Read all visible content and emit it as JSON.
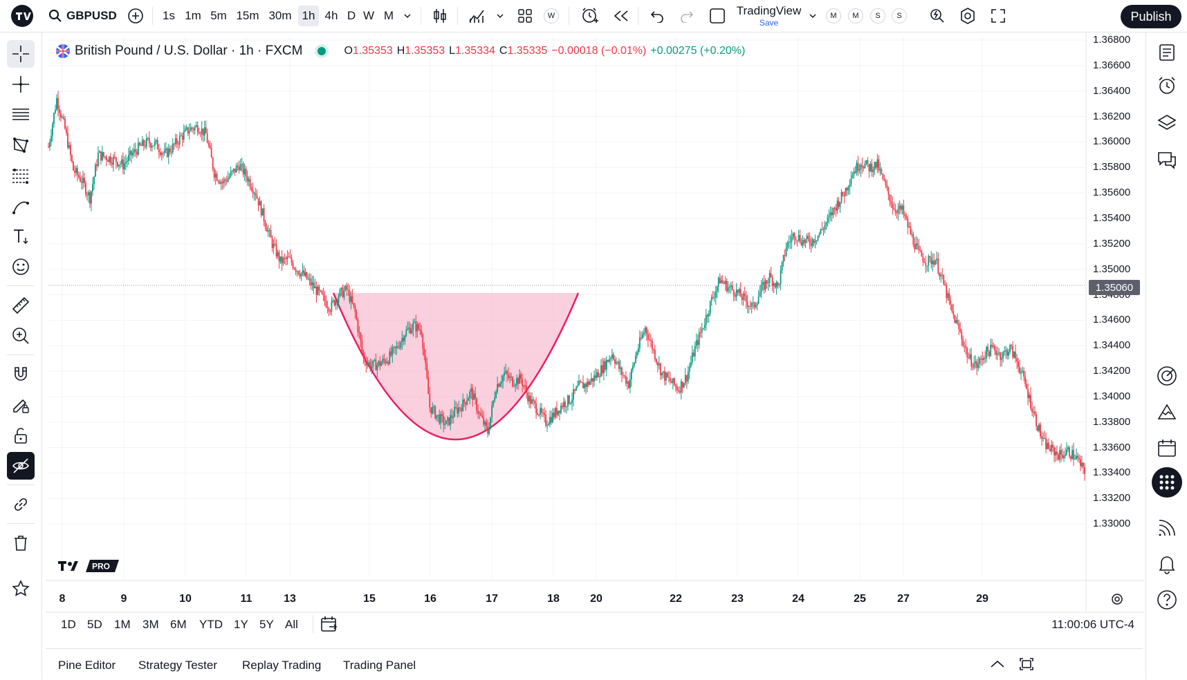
{
  "toolbar": {
    "symbol": "GBPUSD",
    "intervals": [
      "1s",
      "1m",
      "5m",
      "15m",
      "30m",
      "1h",
      "4h",
      "D",
      "W",
      "M"
    ],
    "active_interval": "1h",
    "layout_name": "TradingView",
    "save_label": "Save",
    "status_circles": [
      "W",
      "M",
      "M",
      "S",
      "S"
    ],
    "publish_label": "Publish"
  },
  "legend": {
    "title": "British Pound / U.S. Dollar · 1h · FXCM",
    "o_label": "O",
    "o_value": "1.35353",
    "h_label": "H",
    "h_value": "1.35353",
    "l_label": "L",
    "l_value": "1.35334",
    "c_label": "C",
    "c_value": "1.35335",
    "change": "−0.00018 (−0.01%)",
    "change2": "+0.00275 (+0.20%)"
  },
  "chart_data": {
    "type": "candlestick",
    "y_ticks": [
      "1.36800",
      "1.36600",
      "1.36400",
      "1.36200",
      "1.36000",
      "1.35800",
      "1.35600",
      "1.35400",
      "1.35200",
      "1.35000",
      "1.34800",
      "1.34600",
      "1.34400",
      "1.34200",
      "1.34000",
      "1.33800",
      "1.33600",
      "1.33400",
      "1.33200",
      "1.33000"
    ],
    "ylim": [
      1.3295,
      1.3685
    ],
    "current_price": "1.35060",
    "x_ticks": [
      "8",
      "9",
      "10",
      "11",
      "13",
      "15",
      "16",
      "17",
      "18",
      "20",
      "22",
      "23",
      "24",
      "25",
      "27",
      "29"
    ],
    "path_points": [
      [
        0,
        1.3596
      ],
      [
        6,
        1.3634
      ],
      [
        12,
        1.361
      ],
      [
        18,
        1.3578
      ],
      [
        24,
        1.357
      ],
      [
        30,
        1.3556
      ],
      [
        36,
        1.359
      ],
      [
        42,
        1.3588
      ],
      [
        48,
        1.3586
      ],
      [
        54,
        1.3582
      ],
      [
        60,
        1.359
      ],
      [
        66,
        1.3596
      ],
      [
        72,
        1.36
      ],
      [
        78,
        1.3598
      ],
      [
        84,
        1.359
      ],
      [
        90,
        1.3596
      ],
      [
        96,
        1.3604
      ],
      [
        102,
        1.361
      ],
      [
        108,
        1.3612
      ],
      [
        114,
        1.3606
      ],
      [
        120,
        1.3576
      ],
      [
        126,
        1.3568
      ],
      [
        132,
        1.3574
      ],
      [
        138,
        1.3582
      ],
      [
        144,
        1.3572
      ],
      [
        150,
        1.356
      ],
      [
        156,
        1.354
      ],
      [
        162,
        1.352
      ],
      [
        168,
        1.3506
      ],
      [
        174,
        1.3508
      ],
      [
        180,
        1.35
      ],
      [
        186,
        1.3494
      ],
      [
        192,
        1.3486
      ],
      [
        198,
        1.3478
      ],
      [
        204,
        1.347
      ],
      [
        210,
        1.348
      ],
      [
        216,
        1.3484
      ],
      [
        222,
        1.3466
      ],
      [
        228,
        1.343
      ],
      [
        234,
        1.3424
      ],
      [
        240,
        1.3426
      ],
      [
        246,
        1.343
      ],
      [
        252,
        1.3438
      ],
      [
        258,
        1.345
      ],
      [
        264,
        1.3456
      ],
      [
        270,
        1.3452
      ],
      [
        276,
        1.3392
      ],
      [
        282,
        1.3384
      ],
      [
        288,
        1.3378
      ],
      [
        294,
        1.3388
      ],
      [
        300,
        1.3394
      ],
      [
        306,
        1.3404
      ],
      [
        312,
        1.3386
      ],
      [
        318,
        1.3372
      ],
      [
        324,
        1.3408
      ],
      [
        330,
        1.3418
      ],
      [
        336,
        1.3412
      ],
      [
        342,
        1.3414
      ],
      [
        348,
        1.3398
      ],
      [
        354,
        1.339
      ],
      [
        360,
        1.338
      ],
      [
        366,
        1.3386
      ],
      [
        372,
        1.3394
      ],
      [
        378,
        1.3398
      ],
      [
        384,
        1.3408
      ],
      [
        390,
        1.341
      ],
      [
        396,
        1.3416
      ],
      [
        402,
        1.3424
      ],
      [
        408,
        1.3434
      ],
      [
        414,
        1.342
      ],
      [
        420,
        1.341
      ],
      [
        426,
        1.3436
      ],
      [
        432,
        1.3454
      ],
      [
        438,
        1.3436
      ],
      [
        444,
        1.3418
      ],
      [
        450,
        1.3412
      ],
      [
        456,
        1.3406
      ],
      [
        462,
        1.3416
      ],
      [
        468,
        1.3438
      ],
      [
        474,
        1.3456
      ],
      [
        480,
        1.3476
      ],
      [
        486,
        1.3492
      ],
      [
        492,
        1.3486
      ],
      [
        498,
        1.3482
      ],
      [
        504,
        1.3476
      ],
      [
        510,
        1.347
      ],
      [
        516,
        1.3484
      ],
      [
        522,
        1.3494
      ],
      [
        528,
        1.3486
      ],
      [
        534,
        1.3518
      ],
      [
        540,
        1.3528
      ],
      [
        546,
        1.3522
      ],
      [
        552,
        1.3522
      ],
      [
        558,
        1.3528
      ],
      [
        564,
        1.3538
      ],
      [
        570,
        1.355
      ],
      [
        576,
        1.356
      ],
      [
        582,
        1.3576
      ],
      [
        588,
        1.3584
      ],
      [
        594,
        1.358
      ],
      [
        600,
        1.3582
      ],
      [
        606,
        1.3564
      ],
      [
        612,
        1.3548
      ],
      [
        618,
        1.3546
      ],
      [
        624,
        1.3528
      ],
      [
        630,
        1.3512
      ],
      [
        636,
        1.3506
      ],
      [
        642,
        1.3508
      ],
      [
        648,
        1.3488
      ],
      [
        654,
        1.3466
      ],
      [
        660,
        1.345
      ],
      [
        666,
        1.343
      ],
      [
        672,
        1.3424
      ],
      [
        678,
        1.3434
      ],
      [
        684,
        1.3438
      ],
      [
        690,
        1.3432
      ],
      [
        696,
        1.3438
      ],
      [
        702,
        1.3426
      ],
      [
        708,
        1.3406
      ],
      [
        714,
        1.3384
      ],
      [
        720,
        1.3364
      ],
      [
        726,
        1.3358
      ],
      [
        732,
        1.3354
      ],
      [
        738,
        1.3357
      ],
      [
        744,
        1.3352
      ],
      [
        750,
        1.334
      ]
    ],
    "drawing": "cup pattern (shaded)"
  },
  "range_bar": {
    "ranges": [
      "1D",
      "5D",
      "1M",
      "3M",
      "6M",
      "YTD",
      "1Y",
      "5Y",
      "All"
    ],
    "clock": "11:00:06 UTC-4"
  },
  "bottom_tabs": [
    "Pine Editor",
    "Strategy Tester",
    "Replay Trading",
    "Trading Panel"
  ],
  "colors": {
    "up": "#089981",
    "down": "#f23645",
    "pattern_fill": "#f8bbd0",
    "pattern_line": "#e91e63"
  }
}
